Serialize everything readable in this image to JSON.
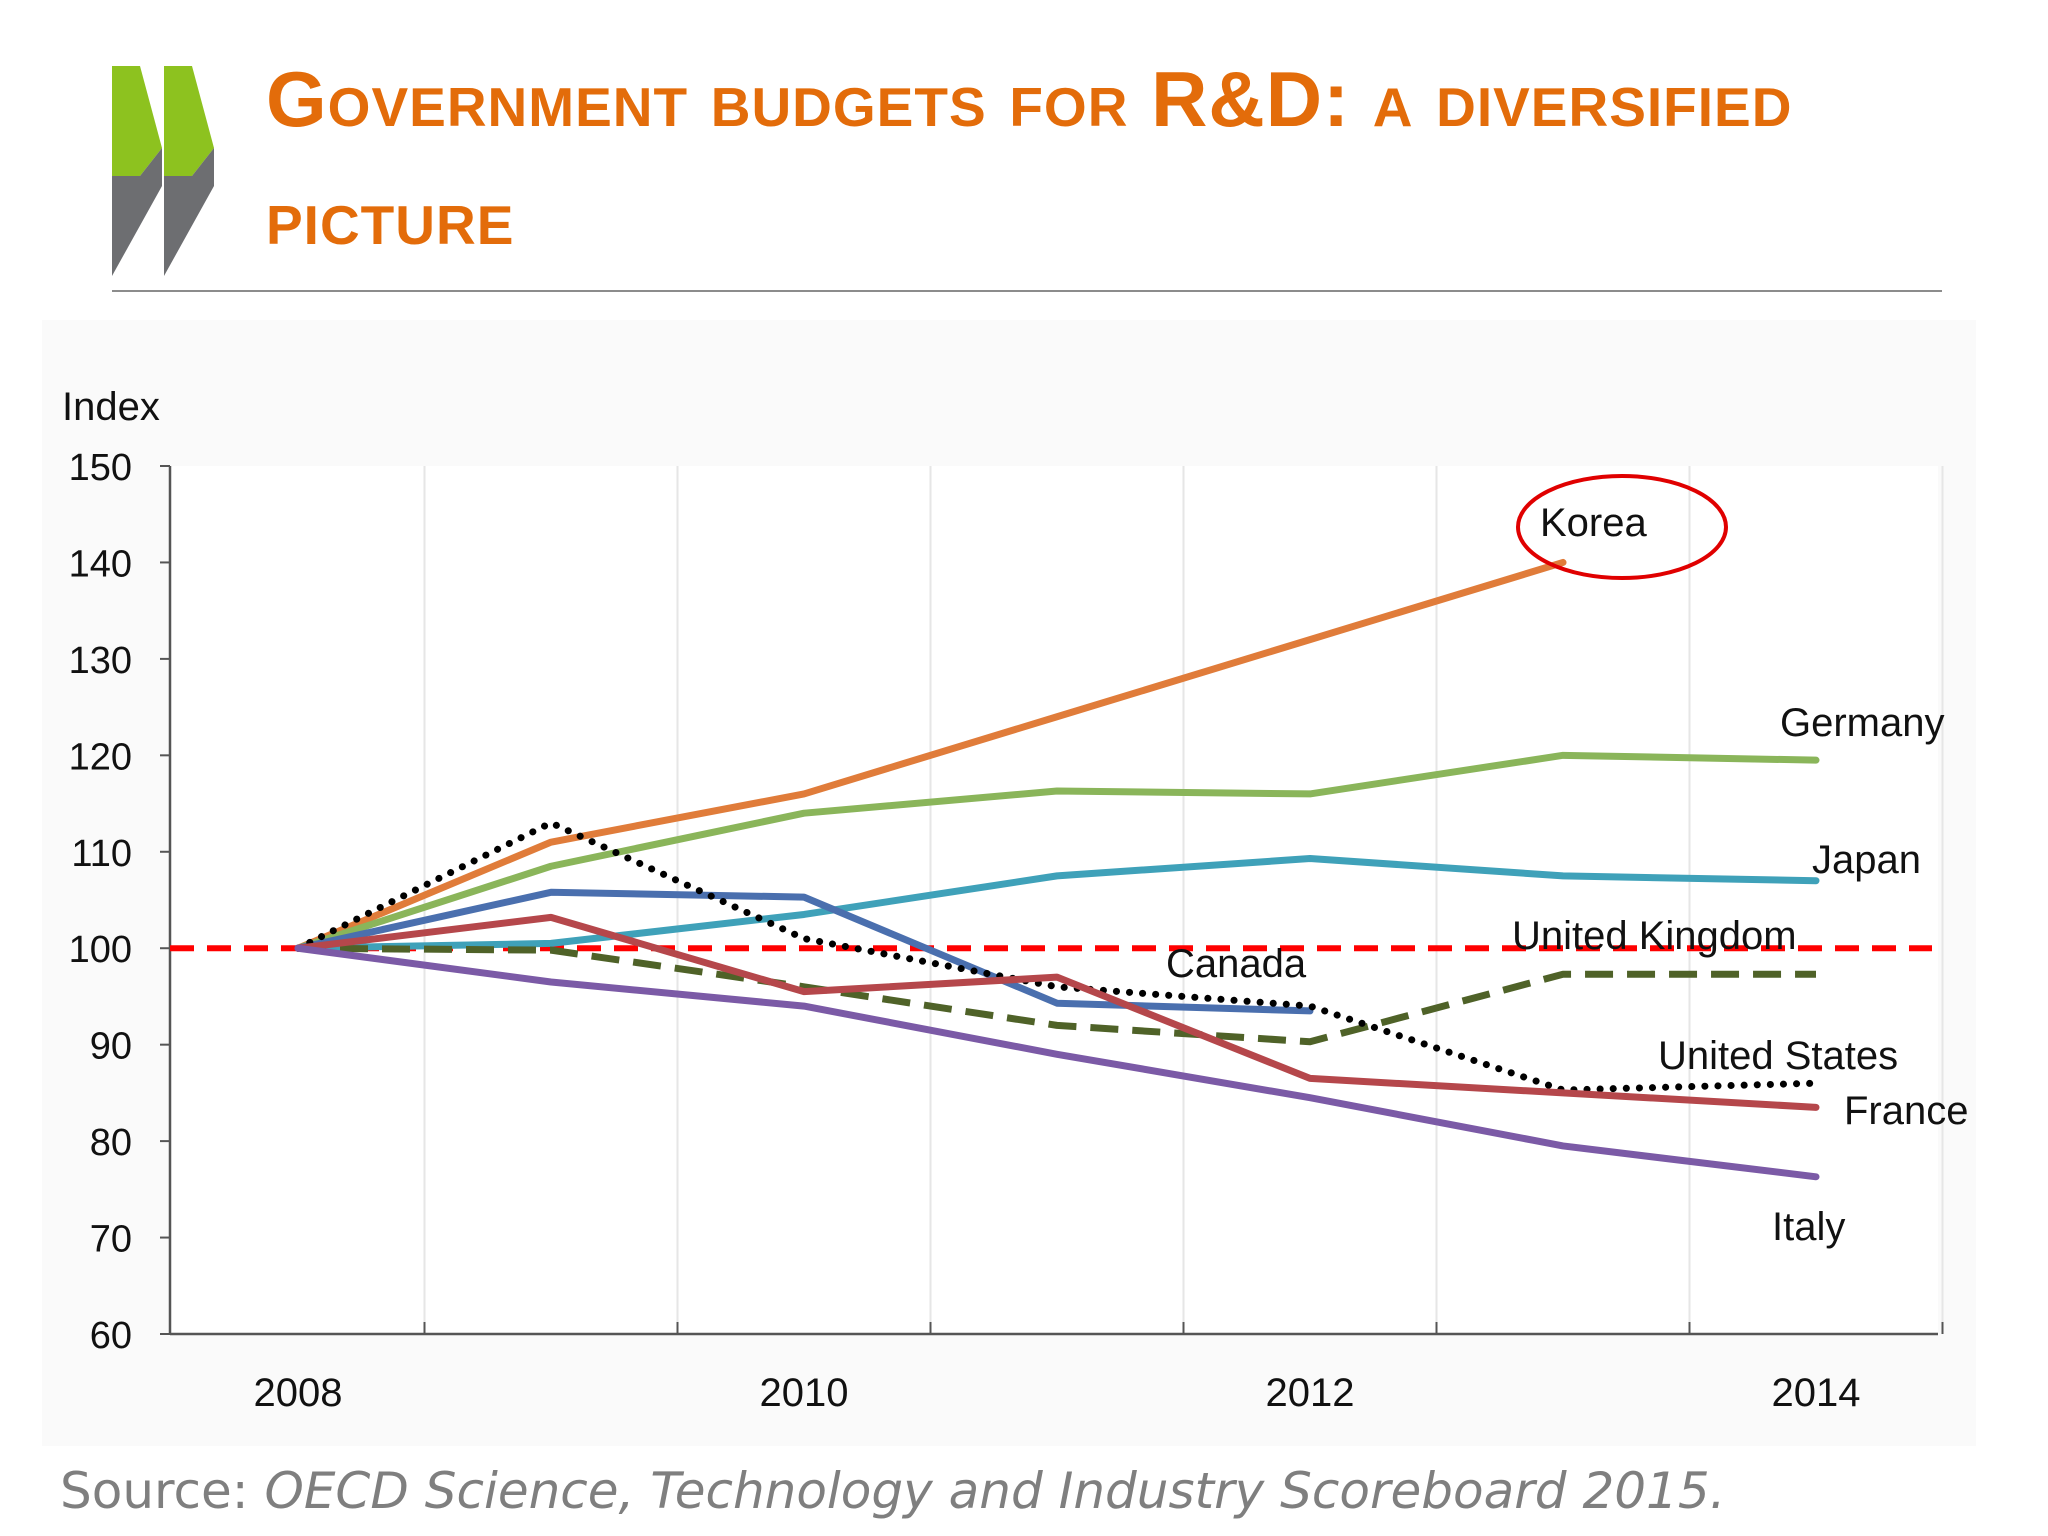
{
  "slide": {
    "title": "Government budgets for R&D: a diversified picture",
    "source_prefix": "Source: ",
    "source_text": "OECD Science, Technology and Industry Scoreboard 2015.",
    "logo_icon": "oecd-chevrons-logo",
    "colors": {
      "title": "#E36C0A",
      "logo_green": "#8DC21F",
      "logo_grey": "#6D6E71"
    }
  },
  "chart_data": {
    "type": "line",
    "title": "",
    "ylabel": "Index",
    "xlabel": "",
    "ylim": [
      60,
      150
    ],
    "yticks": [
      60,
      70,
      80,
      90,
      100,
      110,
      120,
      130,
      140,
      150
    ],
    "xlim": [
      2008,
      2014
    ],
    "xtick_labels": [
      "2008",
      "2010",
      "2012",
      "2014"
    ],
    "xticks": [
      2008,
      2010,
      2012,
      2014
    ],
    "grid": true,
    "reference_line": {
      "value": 100,
      "color": "#FF0000",
      "style": "dashed"
    },
    "highlight": {
      "series": "Korea",
      "shape": "ellipse",
      "color": "#E00000"
    },
    "series": [
      {
        "name": "Korea",
        "color": "#E07C3A",
        "style": "solid",
        "x": [
          2008,
          2009,
          2010,
          2011,
          2012,
          2013
        ],
        "values": [
          100,
          111,
          116,
          124,
          132,
          140
        ]
      },
      {
        "name": "Germany",
        "color": "#8AB55A",
        "style": "solid",
        "x": [
          2008,
          2009,
          2010,
          2011,
          2012,
          2013,
          2014
        ],
        "values": [
          100,
          108.5,
          114,
          116.3,
          116,
          120,
          119.5
        ]
      },
      {
        "name": "Japan",
        "color": "#3FA1B9",
        "style": "solid",
        "x": [
          2008,
          2009,
          2010,
          2011,
          2012,
          2013,
          2014
        ],
        "values": [
          100,
          100.5,
          103.5,
          107.5,
          109.3,
          107.5,
          107
        ]
      },
      {
        "name": "Canada",
        "color": "#4A6FAE",
        "style": "solid",
        "x": [
          2008,
          2009,
          2010,
          2011,
          2012
        ],
        "values": [
          100,
          105.8,
          105.3,
          94.3,
          93.5
        ]
      },
      {
        "name": "United Kingdom",
        "color": "#4F6228",
        "style": "dashed",
        "x": [
          2008,
          2009,
          2010,
          2011,
          2012,
          2013,
          2014
        ],
        "values": [
          100,
          99.8,
          96,
          92,
          90.3,
          97.3,
          97.3
        ]
      },
      {
        "name": "United States",
        "color": "#000000",
        "style": "dotted",
        "x": [
          2008,
          2009,
          2010,
          2011,
          2012,
          2013,
          2014
        ],
        "values": [
          100,
          113,
          101,
          96,
          94,
          85.3,
          86
        ]
      },
      {
        "name": "France",
        "color": "#B5474B",
        "style": "solid",
        "x": [
          2008,
          2009,
          2010,
          2011,
          2012,
          2013,
          2014
        ],
        "values": [
          100,
          103.2,
          95.5,
          97,
          86.5,
          85,
          83.5
        ]
      },
      {
        "name": "Italy",
        "color": "#7B5AA6",
        "style": "solid",
        "x": [
          2008,
          2009,
          2010,
          2011,
          2012,
          2013,
          2014
        ],
        "values": [
          100,
          96.5,
          94,
          89,
          84.5,
          79.5,
          76.3
        ]
      }
    ]
  }
}
